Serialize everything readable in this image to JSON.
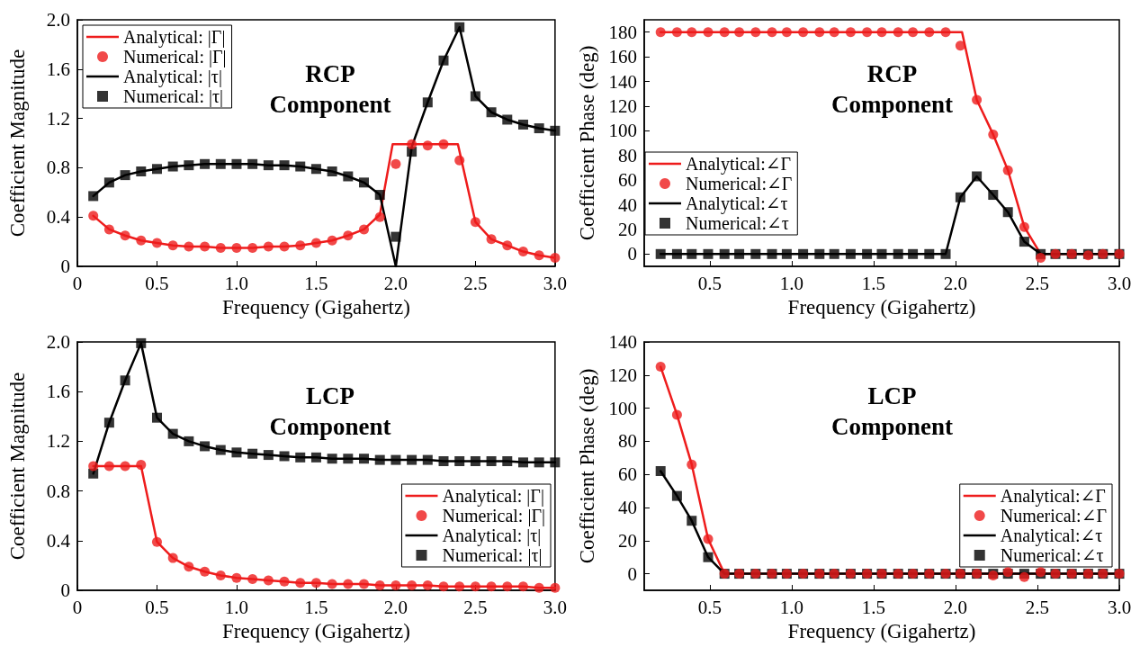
{
  "chart_data": [
    {
      "type": "line",
      "title": "RCP\nComponent",
      "xlabel": "Frequency (Gigahertz)",
      "ylabel": "Coefficient Magnitude",
      "xlim": [
        0,
        3
      ],
      "xticks": [
        0,
        0.5,
        {
          "value": 1,
          "label": "1.0"
        },
        1.5,
        {
          "value": 2,
          "label": "2.0"
        },
        2.5,
        {
          "value": 3,
          "label": "3.0"
        }
      ],
      "ylim": [
        0,
        2
      ],
      "yticks": [
        0,
        0.4,
        0.8,
        1.2,
        1.6,
        {
          "value": 2,
          "label": "2.0"
        }
      ],
      "grid": false,
      "legend": "top left",
      "series": [
        {
          "name": "Analytical: |Γ|",
          "type": "line",
          "marker": "none",
          "color": "#ee1c1c",
          "x": [
            0.1,
            0.2,
            0.3,
            0.4,
            0.5,
            0.6,
            0.7,
            0.8,
            0.9,
            1.0,
            1.1,
            1.2,
            1.3,
            1.4,
            1.5,
            1.6,
            1.7,
            1.8,
            1.9,
            1.98,
            2.39,
            2.5,
            2.6,
            2.7,
            2.8,
            2.9,
            3.0
          ],
          "values": [
            0.41,
            0.3,
            0.25,
            0.21,
            0.19,
            0.17,
            0.16,
            0.16,
            0.15,
            0.15,
            0.15,
            0.16,
            0.16,
            0.17,
            0.19,
            0.21,
            0.25,
            0.3,
            0.42,
            0.99,
            0.99,
            0.36,
            0.22,
            0.17,
            0.12,
            0.09,
            0.07
          ]
        },
        {
          "name": "Numerical: |Γ|",
          "type": "scatter",
          "marker": "circle",
          "color": "#ee1c1c",
          "x": [
            0.1,
            0.2,
            0.3,
            0.4,
            0.5,
            0.6,
            0.7,
            0.8,
            0.9,
            1.0,
            1.1,
            1.2,
            1.3,
            1.4,
            1.5,
            1.6,
            1.7,
            1.8,
            1.9,
            2.0,
            2.1,
            2.2,
            2.3,
            2.4,
            2.5,
            2.6,
            2.7,
            2.8,
            2.9,
            3.0
          ],
          "values": [
            0.41,
            0.3,
            0.25,
            0.21,
            0.19,
            0.17,
            0.16,
            0.16,
            0.15,
            0.15,
            0.15,
            0.16,
            0.16,
            0.17,
            0.19,
            0.21,
            0.25,
            0.3,
            0.4,
            0.83,
            0.99,
            0.98,
            0.99,
            0.86,
            0.36,
            0.22,
            0.17,
            0.12,
            0.09,
            0.07
          ]
        },
        {
          "name": "Analytical: |τ|",
          "type": "line",
          "marker": "none",
          "color": "#000000",
          "x": [
            0.1,
            0.2,
            0.3,
            0.4,
            0.5,
            0.6,
            0.7,
            0.8,
            0.9,
            1.0,
            1.1,
            1.2,
            1.3,
            1.4,
            1.5,
            1.6,
            1.7,
            1.8,
            1.9,
            2.0,
            2.1,
            2.2,
            2.3,
            2.4,
            2.5,
            2.6,
            2.7,
            2.8,
            2.9,
            3.0
          ],
          "values": [
            0.57,
            0.68,
            0.74,
            0.77,
            0.79,
            0.81,
            0.82,
            0.83,
            0.83,
            0.83,
            0.83,
            0.82,
            0.82,
            0.81,
            0.79,
            0.77,
            0.73,
            0.68,
            0.58,
            0,
            0.97,
            1.33,
            1.67,
            1.94,
            1.38,
            1.25,
            1.19,
            1.15,
            1.12,
            1.1
          ]
        },
        {
          "name": "Numerical: |τ|",
          "type": "scatter",
          "marker": "square",
          "color": "#000000",
          "x": [
            0.1,
            0.2,
            0.3,
            0.4,
            0.5,
            0.6,
            0.7,
            0.8,
            0.9,
            1.0,
            1.1,
            1.2,
            1.3,
            1.4,
            1.5,
            1.6,
            1.7,
            1.8,
            1.9,
            2.0,
            2.1,
            2.2,
            2.3,
            2.4,
            2.5,
            2.6,
            2.7,
            2.8,
            2.9,
            3.0
          ],
          "values": [
            0.57,
            0.68,
            0.74,
            0.77,
            0.79,
            0.81,
            0.82,
            0.83,
            0.83,
            0.83,
            0.83,
            0.82,
            0.82,
            0.81,
            0.79,
            0.77,
            0.73,
            0.68,
            0.58,
            0.24,
            0.93,
            1.33,
            1.67,
            1.94,
            1.38,
            1.25,
            1.19,
            1.15,
            1.12,
            1.1
          ]
        }
      ]
    },
    {
      "type": "line",
      "title": "RCP\nComponent",
      "xlabel": "Frequency (Gigahertz)",
      "ylabel": "Coefficient Phase (deg)",
      "xlim": [
        0.1,
        3
      ],
      "xticks": [
        0.5,
        {
          "value": 1,
          "label": "1.0"
        },
        1.5,
        {
          "value": 2,
          "label": "2.0"
        },
        2.5,
        {
          "value": 3,
          "label": "3.0"
        }
      ],
      "ylim": [
        -10,
        190
      ],
      "yticks": [
        0,
        20,
        40,
        60,
        80,
        100,
        120,
        140,
        160,
        180
      ],
      "grid": false,
      "legend": "bottom left",
      "series": [
        {
          "name": "Analytical:∠Γ",
          "type": "line",
          "marker": "none",
          "color": "#ee1c1c",
          "x": [
            0.2,
            2.04,
            2.13,
            2.23,
            2.32,
            2.42,
            2.52,
            3.0
          ],
          "values": [
            180,
            180,
            125,
            97,
            68,
            22,
            0,
            0
          ]
        },
        {
          "name": "Numerical:∠Γ",
          "type": "scatter",
          "marker": "circle",
          "color": "#ee1c1c",
          "x": [
            0.2,
            0.3,
            0.39,
            0.49,
            0.59,
            0.68,
            0.78,
            0.88,
            0.97,
            1.07,
            1.17,
            1.26,
            1.36,
            1.46,
            1.55,
            1.65,
            1.74,
            1.84,
            1.94,
            2.03,
            2.13,
            2.23,
            2.32,
            2.42,
            2.52,
            2.61,
            2.71,
            2.81,
            2.9,
            3.0
          ],
          "values": [
            180,
            180,
            180,
            180,
            180,
            180,
            180,
            180,
            180,
            180,
            180,
            180,
            180,
            180,
            180,
            180,
            180,
            180,
            180,
            169,
            125,
            97,
            68,
            22,
            -3,
            0,
            0,
            -1,
            0,
            0
          ]
        },
        {
          "name": "Analytical:∠τ",
          "type": "line",
          "marker": "none",
          "color": "#000000",
          "x": [
            0.2,
            1.94,
            2.03,
            2.13,
            2.23,
            2.32,
            2.42,
            2.52,
            3.0
          ],
          "values": [
            0,
            0,
            46,
            63,
            48,
            34,
            10,
            0,
            0
          ]
        },
        {
          "name": "Numerical:∠τ",
          "type": "scatter",
          "marker": "square",
          "color": "#000000",
          "x": [
            0.2,
            0.3,
            0.39,
            0.49,
            0.59,
            0.68,
            0.78,
            0.88,
            0.97,
            1.07,
            1.17,
            1.26,
            1.36,
            1.46,
            1.55,
            1.65,
            1.74,
            1.84,
            1.94,
            2.03,
            2.13,
            2.23,
            2.32,
            2.42,
            2.52,
            2.61,
            2.71,
            2.81,
            2.9,
            3.0
          ],
          "values": [
            0,
            0,
            0,
            0,
            0,
            0,
            0,
            0,
            0,
            0,
            0,
            0,
            0,
            0,
            0,
            0,
            0,
            0,
            0,
            46,
            63,
            48,
            34,
            10,
            0,
            0,
            0,
            0,
            0,
            0
          ]
        }
      ]
    },
    {
      "type": "line",
      "title": "LCP\nComponent",
      "xlabel": "Frequency (Gigahertz)",
      "ylabel": "Coefficient Magnitude",
      "xlim": [
        0,
        3
      ],
      "xticks": [
        0,
        0.5,
        {
          "value": 1,
          "label": "1.0"
        },
        1.5,
        {
          "value": 2,
          "label": "2.0"
        },
        2.5,
        {
          "value": 3,
          "label": "3.0"
        }
      ],
      "ylim": [
        0,
        2
      ],
      "yticks": [
        0,
        0.4,
        0.8,
        1.2,
        1.6,
        {
          "value": 2,
          "label": "2.0"
        }
      ],
      "grid": false,
      "legend": "bottom right",
      "series": [
        {
          "name": "Analytical: |Γ|",
          "type": "line",
          "marker": "none",
          "color": "#ee1c1c",
          "x": [
            0.1,
            0.2,
            0.3,
            0.4,
            0.5,
            0.6,
            0.7,
            0.8,
            0.9,
            1.0,
            1.1,
            1.2,
            1.3,
            1.4,
            1.5,
            1.6,
            1.7,
            1.8,
            1.9,
            2.0,
            2.1,
            2.2,
            2.3,
            2.4,
            2.5,
            2.6,
            2.7,
            2.8,
            2.9,
            3.0
          ],
          "values": [
            1.0,
            1.0,
            1.0,
            1.0,
            0.39,
            0.26,
            0.19,
            0.15,
            0.12,
            0.1,
            0.09,
            0.08,
            0.07,
            0.06,
            0.06,
            0.05,
            0.05,
            0.05,
            0.04,
            0.04,
            0.04,
            0.04,
            0.03,
            0.03,
            0.03,
            0.03,
            0.03,
            0.03,
            0.02,
            0.02
          ]
        },
        {
          "name": "Numerical: |Γ|",
          "type": "scatter",
          "marker": "circle",
          "color": "#ee1c1c",
          "x": [
            0.1,
            0.2,
            0.3,
            0.4,
            0.5,
            0.6,
            0.7,
            0.8,
            0.9,
            1.0,
            1.1,
            1.2,
            1.3,
            1.4,
            1.5,
            1.6,
            1.7,
            1.8,
            1.9,
            2.0,
            2.1,
            2.2,
            2.3,
            2.4,
            2.5,
            2.6,
            2.7,
            2.8,
            2.9,
            3.0
          ],
          "values": [
            1.0,
            1.0,
            1.0,
            1.01,
            0.39,
            0.26,
            0.19,
            0.15,
            0.12,
            0.1,
            0.09,
            0.08,
            0.07,
            0.06,
            0.06,
            0.05,
            0.05,
            0.05,
            0.04,
            0.04,
            0.04,
            0.04,
            0.03,
            0.03,
            0.03,
            0.03,
            0.03,
            0.03,
            0.02,
            0.02
          ]
        },
        {
          "name": "Analytical: |τ|",
          "type": "line",
          "marker": "none",
          "color": "#000000",
          "x": [
            0.1,
            0.2,
            0.3,
            0.4,
            0.5,
            0.6,
            0.7,
            0.8,
            0.9,
            1.0,
            1.1,
            1.2,
            1.3,
            1.4,
            1.5,
            1.6,
            1.7,
            1.8,
            1.9,
            2.0,
            2.1,
            2.2,
            2.3,
            2.4,
            2.5,
            2.6,
            2.7,
            2.8,
            2.9,
            3.0
          ],
          "values": [
            0.94,
            1.35,
            1.69,
            1.99,
            1.39,
            1.26,
            1.2,
            1.16,
            1.13,
            1.11,
            1.1,
            1.09,
            1.08,
            1.07,
            1.07,
            1.06,
            1.06,
            1.06,
            1.05,
            1.05,
            1.05,
            1.05,
            1.04,
            1.04,
            1.04,
            1.04,
            1.04,
            1.03,
            1.03,
            1.03
          ]
        },
        {
          "name": "Numerical: |τ|",
          "type": "scatter",
          "marker": "square",
          "color": "#000000",
          "x": [
            0.1,
            0.2,
            0.3,
            0.4,
            0.5,
            0.6,
            0.7,
            0.8,
            0.9,
            1.0,
            1.1,
            1.2,
            1.3,
            1.4,
            1.5,
            1.6,
            1.7,
            1.8,
            1.9,
            2.0,
            2.1,
            2.2,
            2.3,
            2.4,
            2.5,
            2.6,
            2.7,
            2.8,
            2.9,
            3.0
          ],
          "values": [
            0.94,
            1.35,
            1.69,
            1.99,
            1.39,
            1.26,
            1.2,
            1.16,
            1.13,
            1.11,
            1.1,
            1.09,
            1.08,
            1.07,
            1.07,
            1.06,
            1.06,
            1.06,
            1.05,
            1.05,
            1.05,
            1.05,
            1.04,
            1.04,
            1.04,
            1.04,
            1.04,
            1.03,
            1.03,
            1.03
          ]
        }
      ]
    },
    {
      "type": "line",
      "title": "LCP\nComponent",
      "xlabel": "Frequency (Gigahertz)",
      "ylabel": "Coefficient Phase (deg)",
      "xlim": [
        0.1,
        3
      ],
      "xticks": [
        0.5,
        {
          "value": 1,
          "label": "1.0"
        },
        1.5,
        {
          "value": 2,
          "label": "2.0"
        },
        2.5,
        {
          "value": 3,
          "label": "3.0"
        }
      ],
      "ylim": [
        -10,
        140
      ],
      "yticks": [
        0,
        20,
        40,
        60,
        80,
        100,
        120,
        140
      ],
      "grid": false,
      "legend": "bottom right",
      "series": [
        {
          "name": "Analytical:∠Γ",
          "type": "line",
          "marker": "none",
          "color": "#ee1c1c",
          "x": [
            0.2,
            0.3,
            0.39,
            0.49,
            0.59,
            3.0
          ],
          "values": [
            125,
            96,
            66,
            21,
            0,
            0
          ]
        },
        {
          "name": "Numerical:∠Γ",
          "type": "scatter",
          "marker": "circle",
          "color": "#ee1c1c",
          "x": [
            0.2,
            0.3,
            0.39,
            0.49,
            0.59,
            0.68,
            0.78,
            0.88,
            0.97,
            1.07,
            1.17,
            1.26,
            1.36,
            1.46,
            1.55,
            1.65,
            1.74,
            1.84,
            1.94,
            2.03,
            2.13,
            2.23,
            2.32,
            2.42,
            2.52,
            2.61,
            2.71,
            2.81,
            2.9,
            3.0
          ],
          "values": [
            125,
            96,
            66,
            21,
            0,
            0,
            0,
            0,
            0,
            0,
            0,
            0,
            0,
            0,
            0,
            0,
            0,
            0,
            0,
            0,
            0,
            -1,
            1,
            -2,
            1,
            0,
            0,
            0,
            0,
            0
          ]
        },
        {
          "name": "Analytical:∠τ",
          "type": "line",
          "marker": "none",
          "color": "#000000",
          "x": [
            0.2,
            0.3,
            0.39,
            0.49,
            0.59,
            3.0
          ],
          "values": [
            62,
            47,
            32,
            10,
            0,
            0
          ]
        },
        {
          "name": "Numerical:∠τ",
          "type": "scatter",
          "marker": "square",
          "color": "#000000",
          "x": [
            0.2,
            0.3,
            0.39,
            0.49,
            0.59,
            0.68,
            0.78,
            0.88,
            0.97,
            1.07,
            1.17,
            1.26,
            1.36,
            1.46,
            1.55,
            1.65,
            1.74,
            1.84,
            1.94,
            2.03,
            2.13,
            2.23,
            2.32,
            2.42,
            2.52,
            2.61,
            2.71,
            2.81,
            2.9,
            3.0
          ],
          "values": [
            62,
            47,
            32,
            10,
            0,
            0,
            0,
            0,
            0,
            0,
            0,
            0,
            0,
            0,
            0,
            0,
            0,
            0,
            0,
            0,
            0,
            0,
            0,
            0,
            0,
            0,
            0,
            0,
            0,
            0
          ]
        }
      ]
    }
  ]
}
